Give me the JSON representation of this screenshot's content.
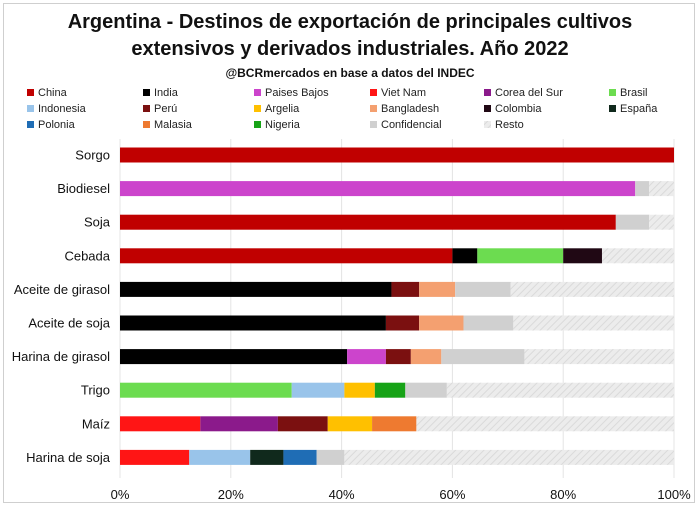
{
  "chart_data": {
    "type": "bar",
    "orientation": "horizontal",
    "stacked": true,
    "title": "Argentina - Destinos de exportación de principales cultivos extensivos y derivados industriales. Año 2022",
    "title_lines": [
      "Argentina - Destinos de exportación de principales cultivos",
      "extensivos y derivados industriales. Año 2022"
    ],
    "subtitle": "@BCRmercados en base a datos del INDEC",
    "xlim": [
      0,
      100
    ],
    "xticks": [
      0,
      20,
      40,
      60,
      80,
      100
    ],
    "xtick_labels": [
      "0%",
      "20%",
      "40%",
      "60%",
      "80%",
      "100%"
    ],
    "legend_position": "top",
    "legend": [
      {
        "name": "China",
        "color": "#c00000"
      },
      {
        "name": "India",
        "color": "#000000"
      },
      {
        "name": "Paises Bajos",
        "color": "#cc44cc"
      },
      {
        "name": "Viet Nam",
        "color": "#ff1515"
      },
      {
        "name": "Corea del Sur",
        "color": "#8b1a8b"
      },
      {
        "name": "Brasil",
        "color": "#6cdc50"
      },
      {
        "name": "Indonesia",
        "color": "#99c4ea"
      },
      {
        "name": "Perú",
        "color": "#7b1010"
      },
      {
        "name": "Argelia",
        "color": "#ffc000"
      },
      {
        "name": "Bangladesh",
        "color": "#f4a070"
      },
      {
        "name": "Colombia",
        "color": "#200814"
      },
      {
        "name": "España",
        "color": "#10291c"
      },
      {
        "name": "Polonia",
        "color": "#1f6db5"
      },
      {
        "name": "Malasia",
        "color": "#ee7a30"
      },
      {
        "name": "Nigeria",
        "color": "#17a317"
      },
      {
        "name": "Confidencial",
        "color": "#d0d0d0"
      },
      {
        "name": "Resto",
        "color": "#ececec"
      }
    ],
    "categories": [
      "Sorgo",
      "Biodiesel",
      "Soja",
      "Cebada",
      "Aceite de girasol",
      "Aceite de soja",
      "Harina de girasol",
      "Trigo",
      "Maíz",
      "Harina de soja"
    ],
    "rows": [
      {
        "label": "Sorgo",
        "segments": [
          {
            "series": "China",
            "value": 100
          }
        ]
      },
      {
        "label": "Biodiesel",
        "segments": [
          {
            "series": "Paises Bajos",
            "value": 93
          },
          {
            "series": "Confidencial",
            "value": 2.5
          },
          {
            "series": "Resto",
            "value": 4.5
          }
        ]
      },
      {
        "label": "Soja",
        "segments": [
          {
            "series": "China",
            "value": 89.5
          },
          {
            "series": "Confidencial",
            "value": 6
          },
          {
            "series": "Resto",
            "value": 4.5
          }
        ]
      },
      {
        "label": "Cebada",
        "segments": [
          {
            "series": "China",
            "value": 60
          },
          {
            "series": "India",
            "value": 4.5
          },
          {
            "series": "Brasil",
            "value": 15.5
          },
          {
            "series": "Colombia",
            "value": 7
          },
          {
            "series": "Resto",
            "value": 13
          }
        ]
      },
      {
        "label": "Aceite de girasol",
        "segments": [
          {
            "series": "India",
            "value": 49
          },
          {
            "series": "Perú",
            "value": 5
          },
          {
            "series": "Bangladesh",
            "value": 6.5
          },
          {
            "series": "Confidencial",
            "value": 10
          },
          {
            "series": "Resto",
            "value": 29.5
          }
        ]
      },
      {
        "label": "Aceite de soja",
        "segments": [
          {
            "series": "India",
            "value": 48
          },
          {
            "series": "Perú",
            "value": 6
          },
          {
            "series": "Bangladesh",
            "value": 8
          },
          {
            "series": "Confidencial",
            "value": 9
          },
          {
            "series": "Resto",
            "value": 29
          }
        ]
      },
      {
        "label": "Harina de girasol",
        "segments": [
          {
            "series": "India",
            "value": 41
          },
          {
            "series": "Paises Bajos",
            "value": 7
          },
          {
            "series": "Perú",
            "value": 4.5
          },
          {
            "series": "Bangladesh",
            "value": 5.5
          },
          {
            "series": "Confidencial",
            "value": 15
          },
          {
            "series": "Resto",
            "value": 27
          }
        ]
      },
      {
        "label": "Trigo",
        "segments": [
          {
            "series": "Brasil",
            "value": 31
          },
          {
            "series": "Indonesia",
            "value": 9.5
          },
          {
            "series": "Argelia",
            "value": 5.5
          },
          {
            "series": "Nigeria",
            "value": 5.5
          },
          {
            "series": "Confidencial",
            "value": 7.5
          },
          {
            "series": "Resto",
            "value": 41
          }
        ]
      },
      {
        "label": "Maíz",
        "segments": [
          {
            "series": "Viet Nam",
            "value": 14.5
          },
          {
            "series": "Corea del Sur",
            "value": 14
          },
          {
            "series": "Perú",
            "value": 9
          },
          {
            "series": "Argelia",
            "value": 8
          },
          {
            "series": "Malasia",
            "value": 8
          },
          {
            "series": "Resto",
            "value": 46.5
          }
        ]
      },
      {
        "label": "Harina de soja",
        "segments": [
          {
            "series": "Viet Nam",
            "value": 12.5
          },
          {
            "series": "Indonesia",
            "value": 11
          },
          {
            "series": "España",
            "value": 6
          },
          {
            "series": "Polonia",
            "value": 6
          },
          {
            "series": "Confidencial",
            "value": 5
          },
          {
            "series": "Resto",
            "value": 59.5
          }
        ]
      }
    ]
  }
}
